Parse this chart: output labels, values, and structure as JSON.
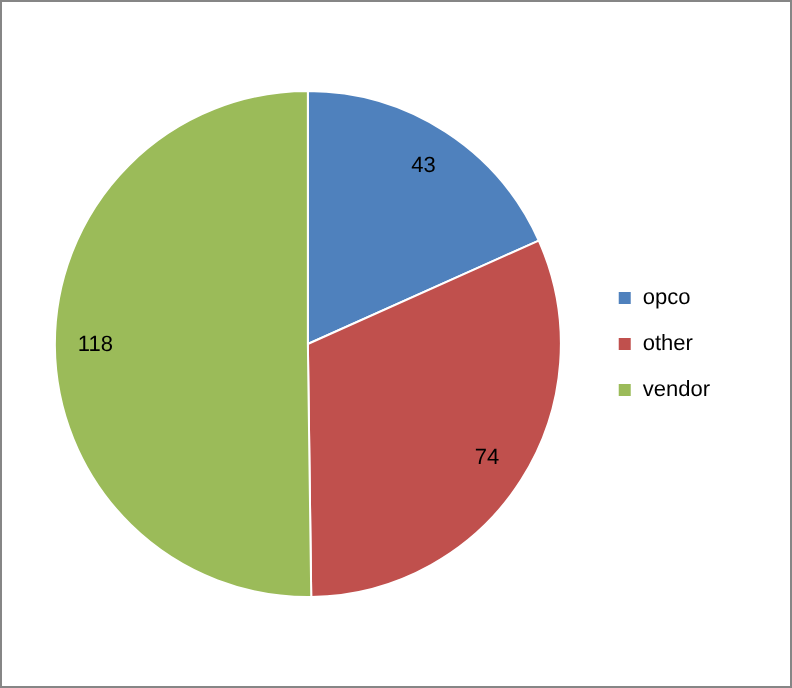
{
  "chart_data": {
    "type": "pie",
    "categories": [
      "opco",
      "other",
      "vendor"
    ],
    "values": [
      43,
      74,
      118
    ],
    "colors": [
      "#4f81bd",
      "#c0504d",
      "#9bbb59"
    ],
    "data_labels": true,
    "legend": "right"
  }
}
